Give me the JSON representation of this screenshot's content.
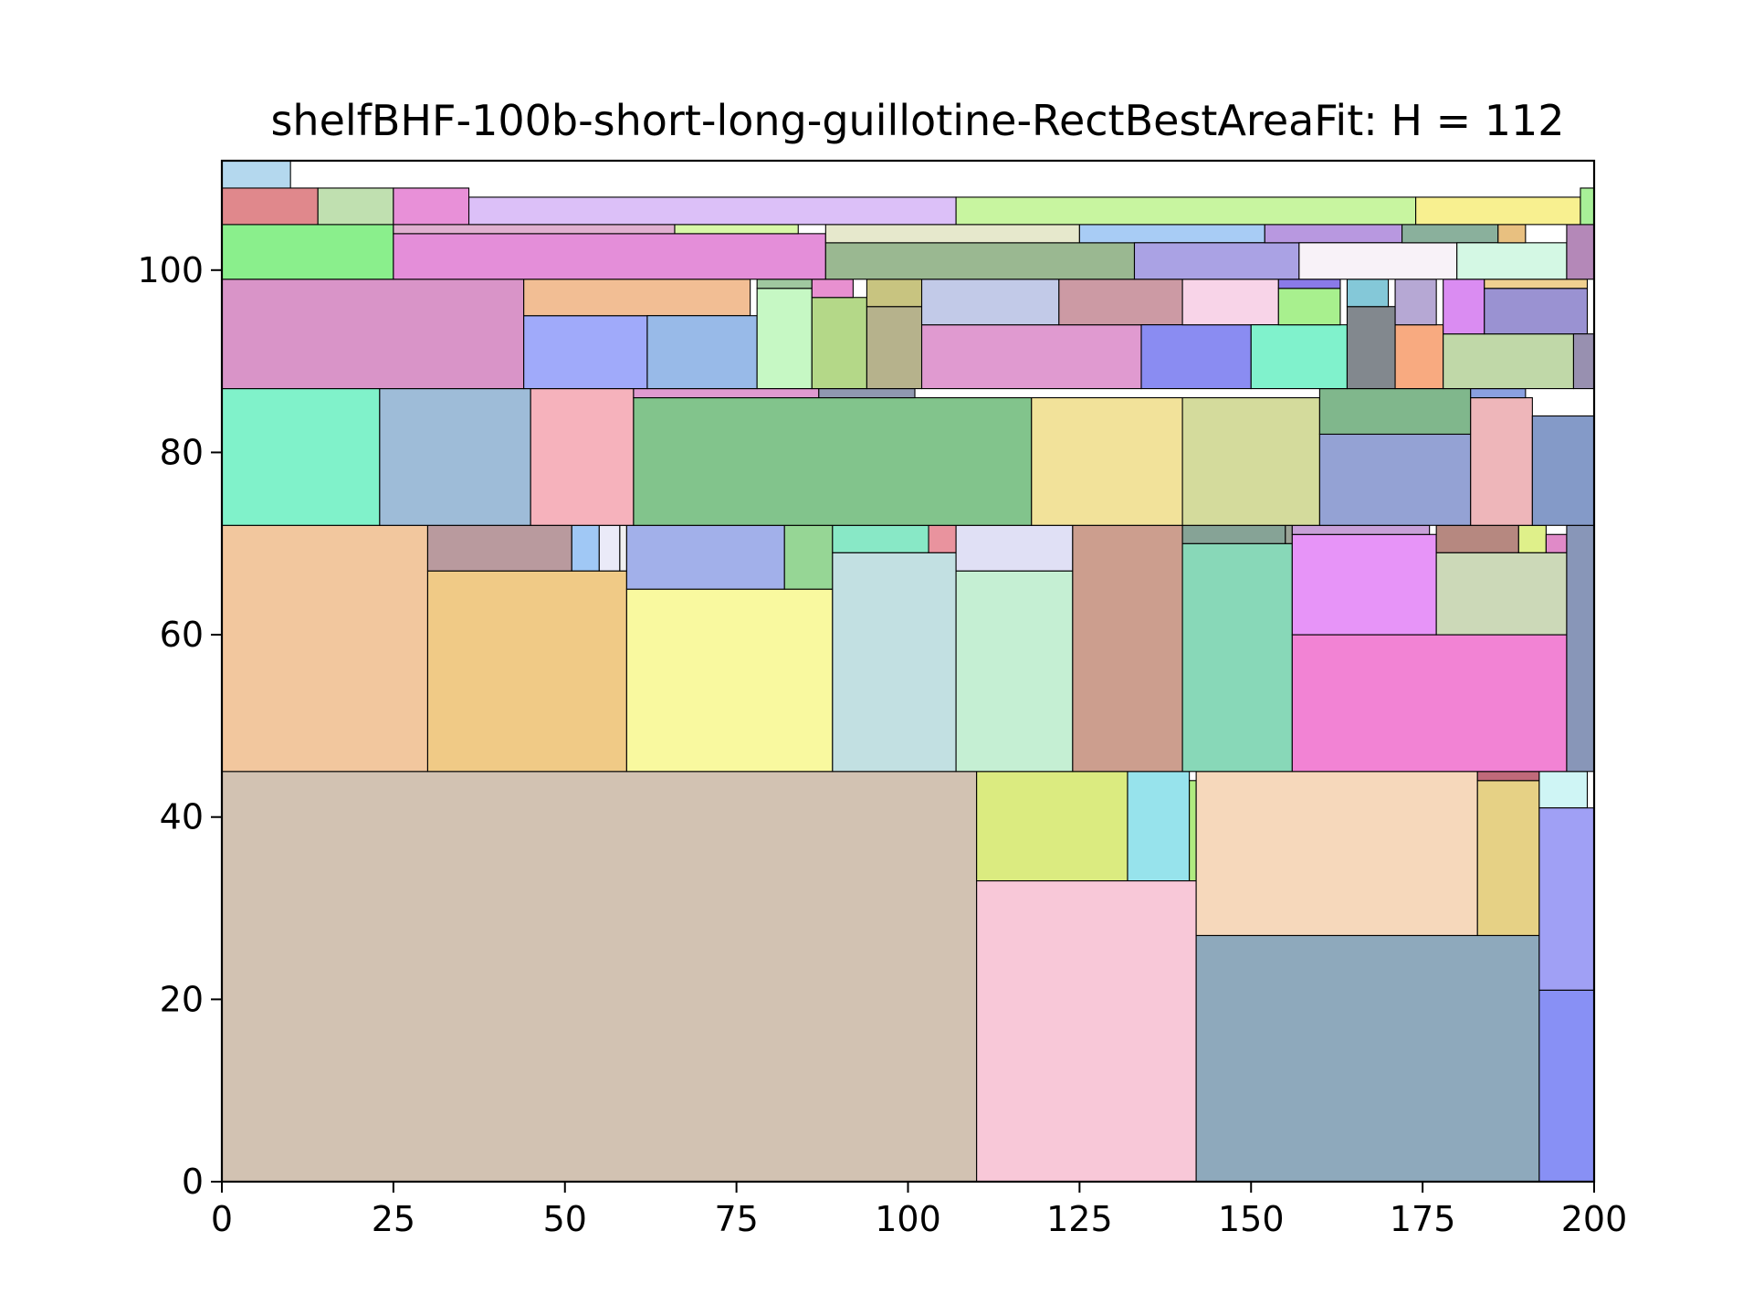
{
  "chart_data": {
    "type": "rectangle-packing",
    "title": "shelfBHF-100b-short-long-guillotine-RectBestAreaFit: H = 112",
    "xlabel": "",
    "ylabel": "",
    "xlim": [
      0,
      200
    ],
    "ylim": [
      0,
      112
    ],
    "x_ticks": [
      "0",
      "25",
      "50",
      "75",
      "100",
      "125",
      "150",
      "175",
      "200"
    ],
    "y_ticks": [
      "0",
      "20",
      "40",
      "60",
      "80",
      "100"
    ],
    "grid": false,
    "rects": [
      {
        "x": 0,
        "y": 0,
        "w": 110,
        "h": 45,
        "color": "#d2c2b2"
      },
      {
        "x": 110,
        "y": 33,
        "w": 22,
        "h": 12,
        "color": "#dbeb80"
      },
      {
        "x": 132,
        "y": 33,
        "w": 9,
        "h": 12,
        "color": "#97e3ec"
      },
      {
        "x": 141,
        "y": 33,
        "w": 1,
        "h": 11,
        "color": "#b0eb80"
      },
      {
        "x": 110,
        "y": 0,
        "w": 32,
        "h": 33,
        "color": "#f8c8d8"
      },
      {
        "x": 142,
        "y": 27,
        "w": 41,
        "h": 18,
        "color": "#f6d8bb"
      },
      {
        "x": 183,
        "y": 27,
        "w": 9,
        "h": 17,
        "color": "#e6d185"
      },
      {
        "x": 183,
        "y": 44,
        "w": 9,
        "h": 1,
        "color": "#c06a7a"
      },
      {
        "x": 142,
        "y": 0,
        "w": 50,
        "h": 27,
        "color": "#8ea9bc"
      },
      {
        "x": 192,
        "y": 41,
        "w": 7,
        "h": 4,
        "color": "#cff5f5"
      },
      {
        "x": 192,
        "y": 21,
        "w": 8,
        "h": 20,
        "color": "#a0a0f5"
      },
      {
        "x": 192,
        "y": 0,
        "w": 8,
        "h": 21,
        "color": "#8890f5"
      },
      {
        "x": 0,
        "y": 45,
        "w": 30,
        "h": 27,
        "color": "#f2c79e"
      },
      {
        "x": 30,
        "y": 45,
        "w": 29,
        "h": 22,
        "color": "#f0ca86"
      },
      {
        "x": 30,
        "y": 67,
        "w": 21,
        "h": 5,
        "color": "#b99a9e"
      },
      {
        "x": 51,
        "y": 67,
        "w": 4,
        "h": 5,
        "color": "#a0c8f5"
      },
      {
        "x": 55,
        "y": 67,
        "w": 3,
        "h": 5,
        "color": "#eaeaf8"
      },
      {
        "x": 58,
        "y": 67,
        "w": 1,
        "h": 5,
        "color": "#f0f0f0"
      },
      {
        "x": 59,
        "y": 45,
        "w": 30,
        "h": 20,
        "color": "#f9f99f"
      },
      {
        "x": 59,
        "y": 65,
        "w": 23,
        "h": 7,
        "color": "#a2b0ea"
      },
      {
        "x": 82,
        "y": 65,
        "w": 7,
        "h": 7,
        "color": "#96d695"
      },
      {
        "x": 89,
        "y": 45,
        "w": 18,
        "h": 24,
        "color": "#c2e0e2"
      },
      {
        "x": 89,
        "y": 69,
        "w": 14,
        "h": 3,
        "color": "#88e8c6"
      },
      {
        "x": 103,
        "y": 69,
        "w": 4,
        "h": 3,
        "color": "#e9939e"
      },
      {
        "x": 107,
        "y": 45,
        "w": 17,
        "h": 22,
        "color": "#c5efd3"
      },
      {
        "x": 107,
        "y": 67,
        "w": 17,
        "h": 5,
        "color": "#e0e0f5"
      },
      {
        "x": 124,
        "y": 45,
        "w": 16,
        "h": 27,
        "color": "#cc9e8e"
      },
      {
        "x": 140,
        "y": 45,
        "w": 16,
        "h": 25,
        "color": "#88d8b8"
      },
      {
        "x": 140,
        "y": 70,
        "w": 15,
        "h": 2,
        "color": "#86a396"
      },
      {
        "x": 155,
        "y": 70,
        "w": 1,
        "h": 2,
        "color": "#9aa396"
      },
      {
        "x": 156,
        "y": 45,
        "w": 40,
        "h": 15,
        "color": "#f283d4"
      },
      {
        "x": 156,
        "y": 60,
        "w": 21,
        "h": 11,
        "color": "#e794f8"
      },
      {
        "x": 156,
        "y": 71,
        "w": 20,
        "h": 1,
        "color": "#c8a0d8"
      },
      {
        "x": 177,
        "y": 60,
        "w": 19,
        "h": 9,
        "color": "#ccd9b8"
      },
      {
        "x": 177,
        "y": 69,
        "w": 12,
        "h": 3,
        "color": "#b68880"
      },
      {
        "x": 189,
        "y": 69,
        "w": 4,
        "h": 3,
        "color": "#dff08a"
      },
      {
        "x": 193,
        "y": 69,
        "w": 3,
        "h": 2,
        "color": "#e08ac8"
      },
      {
        "x": 196,
        "y": 45,
        "w": 4,
        "h": 27,
        "color": "#8896b8"
      },
      {
        "x": 0,
        "y": 72,
        "w": 23,
        "h": 15,
        "color": "#80f2ca"
      },
      {
        "x": 23,
        "y": 72,
        "w": 22,
        "h": 15,
        "color": "#9ebcd8"
      },
      {
        "x": 45,
        "y": 72,
        "w": 15,
        "h": 15,
        "color": "#f6b2bc"
      },
      {
        "x": 60,
        "y": 72,
        "w": 58,
        "h": 14,
        "color": "#82c48c"
      },
      {
        "x": 60,
        "y": 86,
        "w": 27,
        "h": 1,
        "color": "#e09ad0"
      },
      {
        "x": 87,
        "y": 86,
        "w": 14,
        "h": 1,
        "color": "#9098b0"
      },
      {
        "x": 118,
        "y": 72,
        "w": 22,
        "h": 14,
        "color": "#f2e29a"
      },
      {
        "x": 140,
        "y": 72,
        "w": 20,
        "h": 14,
        "color": "#d4db9c"
      },
      {
        "x": 160,
        "y": 72,
        "w": 22,
        "h": 10,
        "color": "#94a2d4"
      },
      {
        "x": 160,
        "y": 82,
        "w": 22,
        "h": 5,
        "color": "#80b78c"
      },
      {
        "x": 182,
        "y": 72,
        "w": 9,
        "h": 14,
        "color": "#eeb6ba"
      },
      {
        "x": 182,
        "y": 86,
        "w": 8,
        "h": 1,
        "color": "#8aa0e0"
      },
      {
        "x": 191,
        "y": 72,
        "w": 9,
        "h": 12,
        "color": "#849ac8"
      },
      {
        "x": 0,
        "y": 87,
        "w": 44,
        "h": 12,
        "color": "#d994c8"
      },
      {
        "x": 44,
        "y": 87,
        "w": 18,
        "h": 8,
        "color": "#a0aafa"
      },
      {
        "x": 44,
        "y": 95,
        "w": 33,
        "h": 4,
        "color": "#f2be94"
      },
      {
        "x": 62,
        "y": 87,
        "w": 16,
        "h": 8,
        "color": "#98bae8"
      },
      {
        "x": 78,
        "y": 87,
        "w": 8,
        "h": 11,
        "color": "#c6f8c4"
      },
      {
        "x": 78,
        "y": 98,
        "w": 8,
        "h": 1,
        "color": "#a0c8a0"
      },
      {
        "x": 86,
        "y": 87,
        "w": 8,
        "h": 10,
        "color": "#b4d888"
      },
      {
        "x": 86,
        "y": 97,
        "w": 6,
        "h": 2,
        "color": "#e890d0"
      },
      {
        "x": 94,
        "y": 87,
        "w": 8,
        "h": 9,
        "color": "#b6b28c"
      },
      {
        "x": 94,
        "y": 96,
        "w": 8,
        "h": 3,
        "color": "#c8c480"
      },
      {
        "x": 102,
        "y": 87,
        "w": 32,
        "h": 7,
        "color": "#e09ad0"
      },
      {
        "x": 102,
        "y": 94,
        "w": 20,
        "h": 5,
        "color": "#c2cae8"
      },
      {
        "x": 122,
        "y": 94,
        "w": 18,
        "h": 5,
        "color": "#cc9aa4"
      },
      {
        "x": 134,
        "y": 87,
        "w": 16,
        "h": 7,
        "color": "#8a8cf2"
      },
      {
        "x": 140,
        "y": 94,
        "w": 14,
        "h": 5,
        "color": "#f8d4e8"
      },
      {
        "x": 150,
        "y": 87,
        "w": 14,
        "h": 7,
        "color": "#80f2cc"
      },
      {
        "x": 154,
        "y": 94,
        "w": 9,
        "h": 4,
        "color": "#a8f08e"
      },
      {
        "x": 154,
        "y": 98,
        "w": 9,
        "h": 1,
        "color": "#8a7ae8"
      },
      {
        "x": 164,
        "y": 87,
        "w": 7,
        "h": 9,
        "color": "#82888e"
      },
      {
        "x": 164,
        "y": 96,
        "w": 6,
        "h": 3,
        "color": "#84c8d8"
      },
      {
        "x": 171,
        "y": 87,
        "w": 7,
        "h": 7,
        "color": "#f8aa80"
      },
      {
        "x": 171,
        "y": 94,
        "w": 6,
        "h": 5,
        "color": "#b6a8d4"
      },
      {
        "x": 178,
        "y": 87,
        "w": 19,
        "h": 6,
        "color": "#c0d8a8"
      },
      {
        "x": 178,
        "y": 93,
        "w": 6,
        "h": 6,
        "color": "#da8cf2"
      },
      {
        "x": 184,
        "y": 93,
        "w": 15,
        "h": 5,
        "color": "#9a92d2"
      },
      {
        "x": 184,
        "y": 98,
        "w": 15,
        "h": 1,
        "color": "#f0d090"
      },
      {
        "x": 197,
        "y": 87,
        "w": 3,
        "h": 6,
        "color": "#9890b0"
      },
      {
        "x": 0,
        "y": 99,
        "w": 25,
        "h": 6,
        "color": "#8aef8c"
      },
      {
        "x": 25,
        "y": 99,
        "w": 63,
        "h": 5,
        "color": "#e48ed9"
      },
      {
        "x": 25,
        "y": 104,
        "w": 41,
        "h": 1,
        "color": "#e0b0d0"
      },
      {
        "x": 66,
        "y": 104,
        "w": 18,
        "h": 1,
        "color": "#d8f8a8"
      },
      {
        "x": 88,
        "y": 99,
        "w": 45,
        "h": 4,
        "color": "#9ab891"
      },
      {
        "x": 88,
        "y": 103,
        "w": 37,
        "h": 2,
        "color": "#e6e8cc"
      },
      {
        "x": 125,
        "y": 103,
        "w": 27,
        "h": 2,
        "color": "#a8ccf5"
      },
      {
        "x": 133,
        "y": 99,
        "w": 24,
        "h": 4,
        "color": "#aaa2e4"
      },
      {
        "x": 152,
        "y": 103,
        "w": 20,
        "h": 2,
        "color": "#b898e0"
      },
      {
        "x": 157,
        "y": 99,
        "w": 23,
        "h": 4,
        "color": "#f8f2f8"
      },
      {
        "x": 172,
        "y": 103,
        "w": 14,
        "h": 2,
        "color": "#8ab09c"
      },
      {
        "x": 180,
        "y": 99,
        "w": 16,
        "h": 4,
        "color": "#d4f8e4"
      },
      {
        "x": 186,
        "y": 103,
        "w": 4,
        "h": 2,
        "color": "#e8c080"
      },
      {
        "x": 196,
        "y": 99,
        "w": 4,
        "h": 6,
        "color": "#b488b8"
      },
      {
        "x": 0,
        "y": 105,
        "w": 14,
        "h": 4,
        "color": "#e0888c"
      },
      {
        "x": 14,
        "y": 105,
        "w": 11,
        "h": 4,
        "color": "#c0e0b0"
      },
      {
        "x": 25,
        "y": 105,
        "w": 11,
        "h": 4,
        "color": "#e890d8"
      },
      {
        "x": 36,
        "y": 105,
        "w": 71,
        "h": 3,
        "color": "#dcc0f8"
      },
      {
        "x": 107,
        "y": 105,
        "w": 67,
        "h": 3,
        "color": "#c8f5a0"
      },
      {
        "x": 174,
        "y": 105,
        "w": 24,
        "h": 3,
        "color": "#f8f090"
      },
      {
        "x": 198,
        "y": 105,
        "w": 2,
        "h": 4,
        "color": "#a8f098"
      },
      {
        "x": 0,
        "y": 109,
        "w": 10,
        "h": 3,
        "color": "#b4d8ee"
      }
    ]
  }
}
